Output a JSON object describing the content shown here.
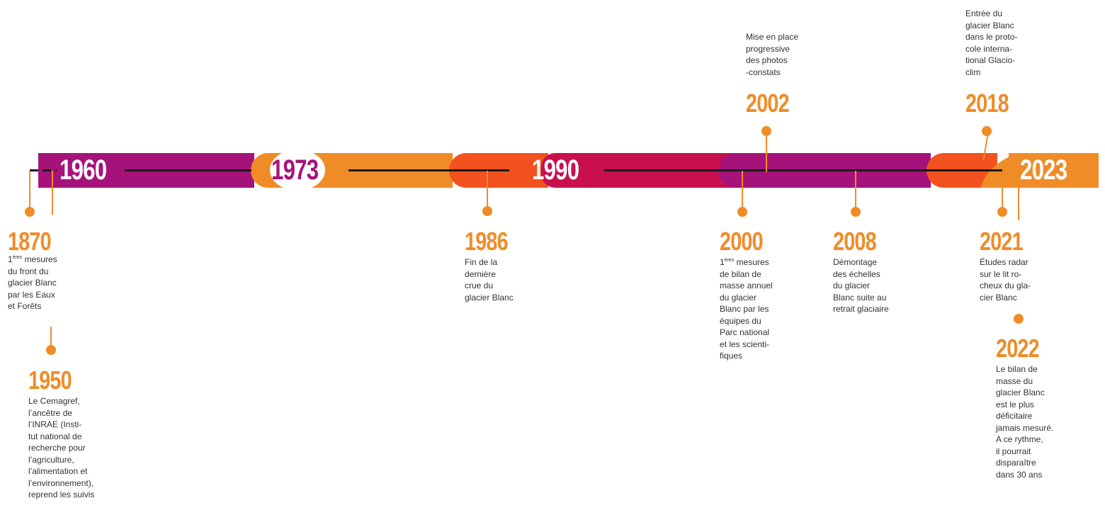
{
  "colors": {
    "purple": "#a5137a",
    "orange": "#f08c28",
    "red_orange": "#f2521f",
    "crimson": "#c8104f",
    "line": "#1a1a1a",
    "text": "#333333"
  },
  "bar_years": {
    "y1960": "1960",
    "y1973": "1973",
    "y1990": "1990",
    "y2023": "2023"
  },
  "events": {
    "e1870": {
      "year": "1870",
      "sup": "ères",
      "pre": "1",
      "text": " mesures\ndu front du\nglacier Blanc\npar les Eaux\net Forêts"
    },
    "e1950": {
      "year": "1950",
      "text": "Le Cemagref,\nl’ancêtre de\nl’INRAE (Insti-\ntut national de\nrecherche pour\nl’agriculture,\nl’alimentation et\nl’environnement),\nreprend les suivis"
    },
    "e1986": {
      "year": "1986",
      "text": "Fin de la\ndernière\ncrue du\nglacier Blanc"
    },
    "e2000": {
      "year": "2000",
      "sup": "ères",
      "pre": "1",
      "text": " mesures\nde bilan de\nmasse annuel\ndu glacier\nBlanc par les\néquipes du\nParc national\net les scienti-\nfiques"
    },
    "e2002": {
      "year": "2002",
      "text": "Mise en place\nprogressive\ndes photos\n-constats"
    },
    "e2008": {
      "year": "2008",
      "text": " Démontage\ndes échelles\ndu glacier\nBlanc suite au\nretrait glaciaire"
    },
    "e2018": {
      "year": "2018",
      "text": "Entrée du\nglacier Blanc\ndans le proto-\ncole interna-\ntional Glacio-\nclim"
    },
    "e2021": {
      "year": "2021",
      "text": "Études radar\nsur le lit ro-\ncheux du gla-\ncier Blanc"
    },
    "e2022": {
      "year": "2022",
      "text": "Le bilan de\nmasse du\nglacier Blanc\nest le plus\ndéficitaire\njamais mesuré.\nA ce rythme,\nil pourrait\ndisparaître\ndans 30 ans"
    }
  }
}
